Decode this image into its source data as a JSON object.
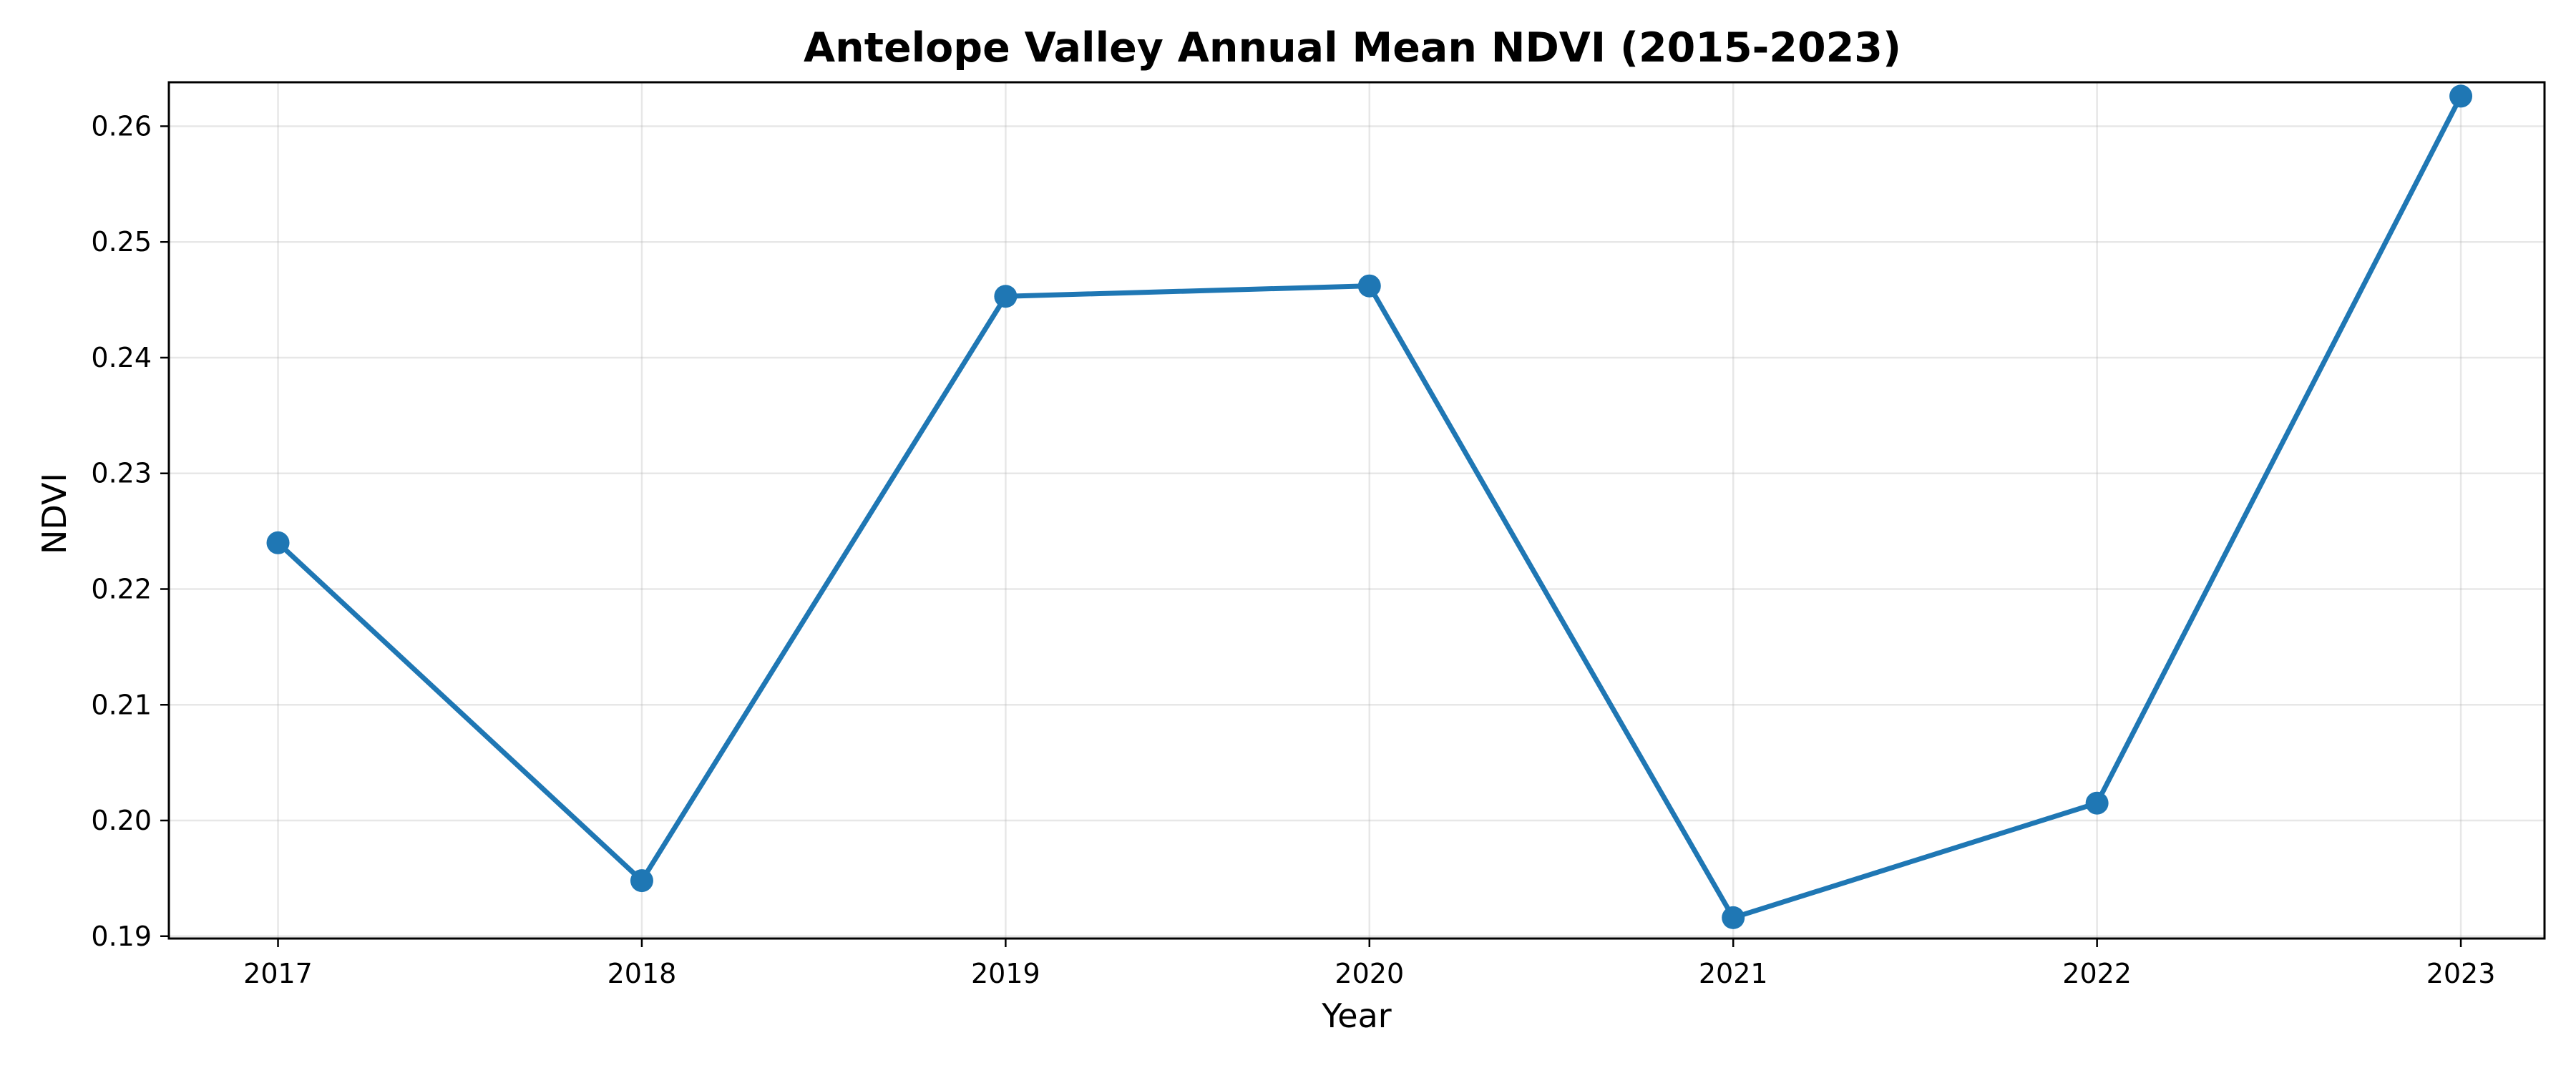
{
  "chart_data": {
    "type": "line",
    "title": "Antelope Valley Annual Mean NDVI (2015-2023)",
    "xlabel": "Year",
    "ylabel": "NDVI",
    "x": [
      2017,
      2018,
      2019,
      2020,
      2021,
      2022,
      2023
    ],
    "x_tick_labels": [
      "2017",
      "2018",
      "2019",
      "2020",
      "2021",
      "2022",
      "2023"
    ],
    "xlim": [
      2016.7,
      2023.23
    ],
    "ylim": [
      0.1898,
      0.2638
    ],
    "y_ticks": [
      0.19,
      0.2,
      0.21,
      0.22,
      0.23,
      0.24,
      0.25,
      0.26
    ],
    "y_tick_labels": [
      "0.19",
      "0.20",
      "0.21",
      "0.22",
      "0.23",
      "0.24",
      "0.25",
      "0.26"
    ],
    "series": [
      {
        "values": [
          0.224,
          0.1948,
          0.2453,
          0.2462,
          0.1916,
          0.2015,
          0.2626
        ],
        "color": "#1f77b4",
        "marker": "circle"
      }
    ],
    "grid": true,
    "legend": "none"
  }
}
